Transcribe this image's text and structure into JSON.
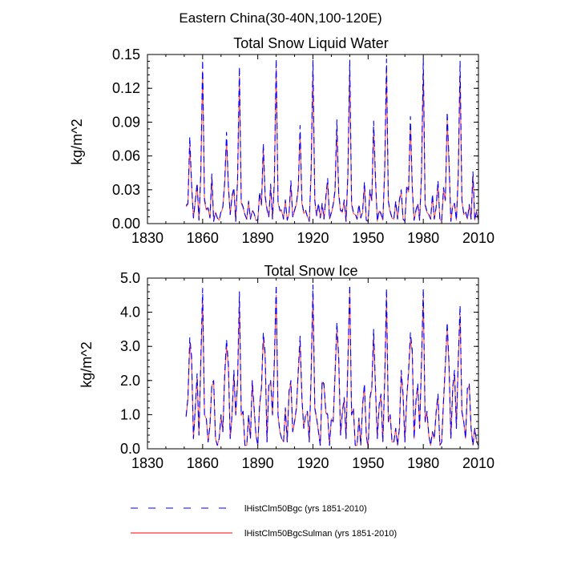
{
  "title": "Eastern China(30-40N,100-120E)",
  "legend": [
    {
      "name": "lHistClm50Bgc (yrs 1851-2010)",
      "color": "#0000ff",
      "dash": "dashed"
    },
    {
      "name": "lHistClm50BgcSulman (yrs 1851-2010)",
      "color": "#ff0000",
      "dash": "solid"
    }
  ],
  "chart_data": [
    {
      "type": "line",
      "title": "Total Snow Liquid Water",
      "xlabel": "",
      "ylabel": "kg/m^2",
      "xlim": [
        1830,
        2010
      ],
      "ylim": [
        0.0,
        0.15
      ],
      "xticks": [
        1830,
        1860,
        1890,
        1920,
        1950,
        1980,
        2010
      ],
      "xtick_labels": [
        "1830",
        "1860",
        "1890",
        "1920",
        "1950",
        "1980",
        "2010"
      ],
      "yticks": [
        0.0,
        0.03,
        0.06,
        0.09,
        0.12,
        0.15
      ],
      "ytick_labels": [
        "0.00",
        "0.03",
        "0.06",
        "0.09",
        "0.12",
        "0.15"
      ],
      "grid": false,
      "x": [
        1851,
        1852,
        1853,
        1854,
        1855,
        1856,
        1857,
        1858,
        1859,
        1860,
        1861,
        1862,
        1863,
        1864,
        1865,
        1866,
        1867,
        1868,
        1869,
        1870,
        1871,
        1872,
        1873,
        1874,
        1875,
        1876,
        1877,
        1878,
        1879,
        1880,
        1881,
        1882,
        1883,
        1884,
        1885,
        1886,
        1887,
        1888,
        1889,
        1890,
        1891,
        1892,
        1893,
        1894,
        1895,
        1896,
        1897,
        1898,
        1899,
        1900,
        1901,
        1902,
        1903,
        1904,
        1905,
        1906,
        1907,
        1908,
        1909,
        1910,
        1911,
        1912,
        1913,
        1914,
        1915,
        1916,
        1917,
        1918,
        1919,
        1920,
        1921,
        1922,
        1923,
        1924,
        1925,
        1926,
        1927,
        1928,
        1929,
        1930,
        1931,
        1932,
        1933,
        1934,
        1935,
        1936,
        1937,
        1938,
        1939,
        1940,
        1941,
        1942,
        1943,
        1944,
        1945,
        1946,
        1947,
        1948,
        1949,
        1950,
        1951,
        1952,
        1953,
        1954,
        1955,
        1956,
        1957,
        1958,
        1959,
        1960,
        1961,
        1962,
        1963,
        1964,
        1965,
        1966,
        1967,
        1968,
        1969,
        1970,
        1971,
        1972,
        1973,
        1974,
        1975,
        1976,
        1977,
        1978,
        1979,
        1980,
        1981,
        1982,
        1983,
        1984,
        1985,
        1986,
        1987,
        1988,
        1989,
        1990,
        1991,
        1992,
        1993,
        1994,
        1995,
        1996,
        1997,
        1998,
        1999,
        2000,
        2001,
        2002,
        2003,
        2004,
        2005,
        2006,
        2007,
        2008,
        2009,
        2010
      ],
      "series": [
        {
          "name": "lHistClm50Bgc (yrs 1851-2010)",
          "values": [
            0.016,
            0.018,
            0.077,
            0.035,
            0.005,
            0.02,
            0.036,
            0.003,
            0.045,
            0.145,
            0.022,
            0.013,
            0.014,
            0.005,
            0.044,
            0.002,
            0.01,
            0.005,
            0.003,
            0.011,
            0.015,
            0.037,
            0.081,
            0.034,
            0.008,
            0.025,
            0.032,
            0.002,
            0.04,
            0.139,
            0.019,
            0.015,
            0.008,
            0.004,
            0.02,
            0.004,
            0.012,
            0.009,
            0.003,
            0.003,
            0.028,
            0.017,
            0.071,
            0.025,
            0.013,
            0.006,
            0.035,
            0.004,
            0.038,
            0.146,
            0.02,
            0.012,
            0.012,
            0.004,
            0.021,
            0.003,
            0.009,
            0.038,
            0.006,
            0.012,
            0.018,
            0.032,
            0.087,
            0.019,
            0.01,
            0.012,
            0.006,
            0.002,
            0.047,
            0.145,
            0.021,
            0.007,
            0.018,
            0.005,
            0.018,
            0.004,
            0.024,
            0.04,
            0.004,
            0.01,
            0.017,
            0.03,
            0.092,
            0.027,
            0.012,
            0.011,
            0.021,
            0.002,
            0.045,
            0.145,
            0.018,
            0.01,
            0.009,
            0.004,
            0.017,
            0.005,
            0.011,
            0.037,
            0.003,
            0.002,
            0.03,
            0.021,
            0.091,
            0.041,
            0.002,
            0.012,
            0.009,
            0.003,
            0.047,
            0.146,
            0.02,
            0.011,
            0.005,
            0.004,
            0.02,
            0.004,
            0.021,
            0.03,
            0.004,
            0.002,
            0.034,
            0.03,
            0.095,
            0.033,
            0.003,
            0.012,
            0.018,
            0.003,
            0.043,
            0.146,
            0.017,
            0.011,
            0.008,
            0.004,
            0.026,
            0.004,
            0.015,
            0.038,
            0.004,
            0.002,
            0.032,
            0.021,
            0.099,
            0.056,
            0.002,
            0.016,
            0.018,
            0.003,
            0.043,
            0.144,
            0.021,
            0.009,
            0.011,
            0.004,
            0.017,
            0.004,
            0.046,
            0.003,
            0.011,
            0.003
          ]
        },
        {
          "name": "lHistClm50BgcSulman (yrs 1851-2010)",
          "values": [
            0.015,
            0.017,
            0.07,
            0.033,
            0.005,
            0.019,
            0.034,
            0.003,
            0.042,
            0.135,
            0.02,
            0.012,
            0.013,
            0.005,
            0.041,
            0.002,
            0.01,
            0.005,
            0.003,
            0.01,
            0.014,
            0.035,
            0.074,
            0.032,
            0.008,
            0.023,
            0.03,
            0.002,
            0.037,
            0.13,
            0.018,
            0.014,
            0.008,
            0.004,
            0.019,
            0.004,
            0.011,
            0.009,
            0.003,
            0.003,
            0.026,
            0.016,
            0.066,
            0.023,
            0.012,
            0.006,
            0.033,
            0.004,
            0.035,
            0.137,
            0.019,
            0.011,
            0.011,
            0.004,
            0.02,
            0.003,
            0.009,
            0.035,
            0.006,
            0.011,
            0.017,
            0.03,
            0.08,
            0.018,
            0.009,
            0.011,
            0.006,
            0.002,
            0.044,
            0.135,
            0.02,
            0.007,
            0.017,
            0.005,
            0.017,
            0.004,
            0.022,
            0.037,
            0.004,
            0.009,
            0.016,
            0.028,
            0.084,
            0.025,
            0.011,
            0.01,
            0.02,
            0.002,
            0.042,
            0.136,
            0.017,
            0.009,
            0.008,
            0.004,
            0.016,
            0.005,
            0.01,
            0.034,
            0.003,
            0.002,
            0.028,
            0.02,
            0.085,
            0.038,
            0.002,
            0.011,
            0.008,
            0.003,
            0.044,
            0.136,
            0.019,
            0.01,
            0.005,
            0.004,
            0.019,
            0.004,
            0.02,
            0.028,
            0.004,
            0.002,
            0.032,
            0.028,
            0.088,
            0.031,
            0.003,
            0.011,
            0.017,
            0.003,
            0.04,
            0.136,
            0.016,
            0.01,
            0.008,
            0.004,
            0.024,
            0.004,
            0.014,
            0.035,
            0.004,
            0.002,
            0.03,
            0.02,
            0.091,
            0.052,
            0.002,
            0.015,
            0.017,
            0.003,
            0.04,
            0.132,
            0.02,
            0.008,
            0.01,
            0.004,
            0.016,
            0.004,
            0.043,
            0.003,
            0.01,
            0.003
          ]
        }
      ]
    },
    {
      "type": "line",
      "title": "Total Snow Ice",
      "xlabel": "",
      "ylabel": "kg/m^2",
      "xlim": [
        1830,
        2010
      ],
      "ylim": [
        0.0,
        5.0
      ],
      "xticks": [
        1830,
        1860,
        1890,
        1920,
        1950,
        1980,
        2010
      ],
      "xtick_labels": [
        "1830",
        "1860",
        "1890",
        "1920",
        "1950",
        "1980",
        "2010"
      ],
      "yticks": [
        0.0,
        1.0,
        2.0,
        3.0,
        4.0,
        5.0
      ],
      "ytick_labels": [
        "0.0",
        "1.0",
        "2.0",
        "3.0",
        "4.0",
        "5.0"
      ],
      "grid": false,
      "x": [
        1851,
        1852,
        1853,
        1854,
        1855,
        1856,
        1857,
        1858,
        1859,
        1860,
        1861,
        1862,
        1863,
        1864,
        1865,
        1866,
        1867,
        1868,
        1869,
        1870,
        1871,
        1872,
        1873,
        1874,
        1875,
        1876,
        1877,
        1878,
        1879,
        1880,
        1881,
        1882,
        1883,
        1884,
        1885,
        1886,
        1887,
        1888,
        1889,
        1890,
        1891,
        1892,
        1893,
        1894,
        1895,
        1896,
        1897,
        1898,
        1899,
        1900,
        1901,
        1902,
        1903,
        1904,
        1905,
        1906,
        1907,
        1908,
        1909,
        1910,
        1911,
        1912,
        1913,
        1914,
        1915,
        1916,
        1917,
        1918,
        1919,
        1920,
        1921,
        1922,
        1923,
        1924,
        1925,
        1926,
        1927,
        1928,
        1929,
        1930,
        1931,
        1932,
        1933,
        1934,
        1935,
        1936,
        1937,
        1938,
        1939,
        1940,
        1941,
        1942,
        1943,
        1944,
        1945,
        1946,
        1947,
        1948,
        1949,
        1950,
        1951,
        1952,
        1953,
        1954,
        1955,
        1956,
        1957,
        1958,
        1959,
        1960,
        1961,
        1962,
        1963,
        1964,
        1965,
        1966,
        1967,
        1968,
        1969,
        1970,
        1971,
        1972,
        1973,
        1974,
        1975,
        1976,
        1977,
        1978,
        1979,
        1980,
        1981,
        1982,
        1983,
        1984,
        1985,
        1986,
        1987,
        1988,
        1989,
        1990,
        1991,
        1992,
        1993,
        1994,
        1995,
        1996,
        1997,
        1998,
        1999,
        2000,
        2001,
        2002,
        2003,
        2004,
        2005,
        2006,
        2007,
        2008,
        2009,
        2010
      ],
      "series": [
        {
          "name": "lHistClm50Bgc (yrs 1851-2010)",
          "values": [
            0.95,
            1.5,
            3.25,
            2.7,
            0.3,
            1.2,
            2.2,
            0.4,
            2.6,
            4.7,
            1.0,
            0.9,
            0.2,
            0.7,
            1.9,
            2.0,
            0.3,
            0.1,
            0.3,
            1.0,
            0.5,
            2.2,
            3.2,
            2.5,
            0.3,
            1.0,
            2.3,
            1.0,
            2.0,
            4.6,
            1.0,
            1.1,
            0.1,
            0.1,
            1.0,
            0.3,
            2.0,
            1.2,
            0.4,
            0.1,
            1.3,
            1.8,
            3.4,
            2.8,
            0.2,
            1.9,
            2.0,
            1.0,
            2.6,
            4.8,
            1.0,
            0.5,
            0.3,
            0.2,
            1.2,
            0.2,
            1.7,
            2.0,
            0.5,
            0.8,
            1.2,
            2.3,
            3.3,
            1.5,
            0.6,
            1.0,
            1.1,
            0.2,
            2.2,
            4.8,
            1.2,
            0.9,
            0.5,
            0.1,
            2.0,
            1.9,
            1.1,
            1.0,
            0.1,
            0.9,
            0.8,
            2.2,
            3.7,
            2.7,
            0.4,
            1.1,
            1.5,
            0.3,
            2.6,
            4.8,
            1.0,
            1.2,
            0.1,
            0.1,
            0.9,
            0.1,
            1.3,
            1.9,
            0.4,
            0.0,
            1.5,
            1.8,
            3.5,
            1.8,
            0.3,
            1.3,
            1.6,
            0.2,
            2.0,
            4.7,
            0.8,
            1.0,
            0.2,
            0.2,
            0.6,
            0.1,
            0.6,
            2.3,
            1.6,
            0.2,
            1.5,
            2.3,
            3.4,
            2.9,
            0.3,
            1.4,
            1.9,
            0.6,
            2.5,
            4.7,
            0.8,
            1.1,
            0.4,
            0.1,
            0.5,
            0.3,
            1.1,
            1.6,
            0.1,
            0.2,
            1.4,
            2.5,
            3.7,
            2.5,
            0.3,
            1.8,
            2.3,
            0.6,
            2.6,
            4.2,
            1.1,
            0.8,
            0.3,
            1.8,
            1.9,
            0.6,
            0.1,
            0.6,
            0.2,
            0.1
          ]
        },
        {
          "name": "lHistClm50BgcSulman (yrs 1851-2010)",
          "values": [
            0.93,
            1.45,
            3.05,
            2.6,
            0.3,
            1.15,
            2.1,
            0.4,
            2.45,
            4.4,
            1.0,
            0.88,
            0.2,
            0.68,
            1.85,
            1.95,
            0.3,
            0.1,
            0.3,
            0.98,
            0.5,
            2.1,
            3.0,
            2.4,
            0.3,
            0.98,
            2.2,
            0.98,
            1.9,
            4.3,
            0.98,
            1.05,
            0.1,
            0.1,
            0.98,
            0.3,
            1.95,
            1.15,
            0.4,
            0.1,
            1.25,
            1.75,
            3.2,
            2.7,
            0.2,
            1.85,
            1.95,
            0.98,
            2.45,
            4.5,
            0.98,
            0.5,
            0.3,
            0.2,
            1.15,
            0.2,
            1.65,
            1.95,
            0.5,
            0.78,
            1.15,
            2.2,
            3.1,
            1.45,
            0.6,
            0.98,
            1.05,
            0.2,
            2.1,
            4.5,
            1.15,
            0.88,
            0.5,
            0.1,
            1.95,
            1.85,
            1.05,
            0.98,
            0.1,
            0.88,
            0.78,
            2.1,
            3.5,
            2.6,
            0.4,
            1.05,
            1.45,
            0.3,
            2.45,
            4.55,
            0.98,
            1.15,
            0.1,
            0.1,
            0.88,
            0.1,
            1.25,
            1.85,
            0.4,
            0.0,
            1.45,
            1.75,
            3.3,
            1.75,
            0.3,
            1.25,
            1.55,
            0.2,
            1.9,
            4.45,
            0.78,
            0.98,
            0.2,
            0.2,
            0.6,
            0.1,
            0.6,
            2.2,
            1.55,
            0.2,
            1.45,
            2.2,
            3.2,
            2.8,
            0.3,
            1.35,
            1.85,
            0.6,
            2.4,
            4.45,
            0.78,
            1.05,
            0.4,
            0.1,
            0.5,
            0.3,
            1.05,
            1.55,
            0.1,
            0.2,
            1.35,
            2.4,
            3.5,
            2.4,
            0.3,
            1.75,
            2.2,
            0.6,
            2.5,
            3.95,
            1.05,
            0.78,
            0.3,
            1.75,
            1.85,
            0.6,
            0.1,
            0.6,
            0.2,
            0.1
          ]
        }
      ]
    }
  ]
}
